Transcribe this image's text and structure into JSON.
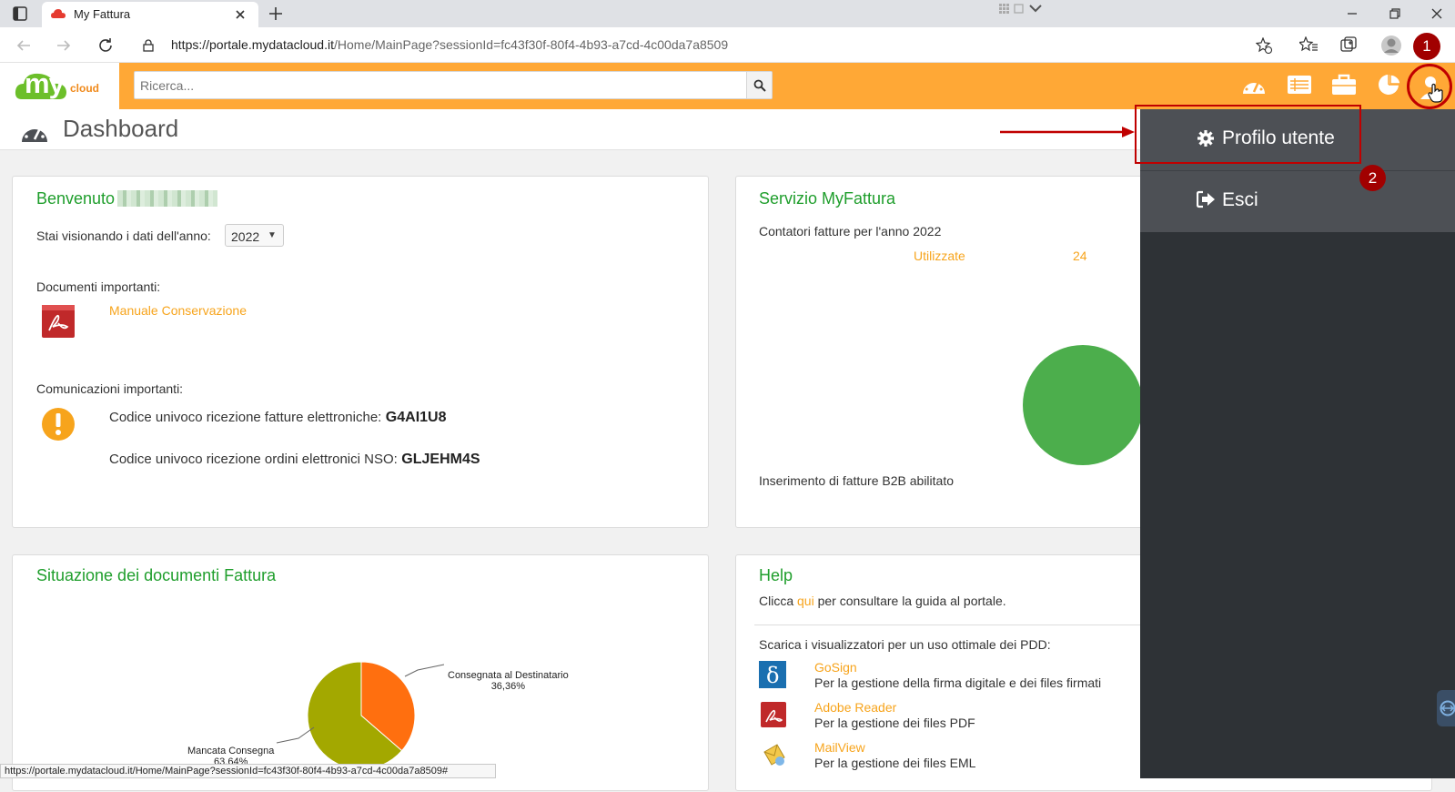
{
  "browser": {
    "tab_title": "My Fattura",
    "url_host": "https://portale.mydatacloud.it",
    "url_path": "/Home/MainPage?sessionId=fc43f30f-80f4-4b93-a7cd-4c00da7a8509",
    "status_url": "https://portale.mydatacloud.it/Home/MainPage?sessionId=fc43f30f-80f4-4b93-a7cd-4c00da7a8509#"
  },
  "header": {
    "logo_text": "my",
    "logo_sub": "cloud",
    "search_placeholder": "Ricerca..."
  },
  "page": {
    "title": "Dashboard"
  },
  "welcome": {
    "title": "Benvenuto",
    "year_label": "Stai visionando i dati dell'anno:",
    "year_value": "2022",
    "docs_label": "Documenti importanti:",
    "doc_link": "Manuale Conservazione",
    "comm_label": "Comunicazioni importanti:",
    "code1_label": "Codice univoco ricezione fatture elettroniche:",
    "code1_value": "G4AI1U8",
    "code2_label": "Codice univoco ricezione ordini elettronici NSO:",
    "code2_value": "GLJEHM4S"
  },
  "service": {
    "title": "Servizio MyFattura",
    "counters_label": "Contatori fatture per l'anno 2022",
    "used_label": "Utilizzate",
    "used_value": "24",
    "b2b_label": "Inserimento di fatture B2B abilitato"
  },
  "situazione": {
    "title": "Situazione dei documenti Fattura",
    "label_a": "Consegnata al Destinatario",
    "pct_a": "36,36%",
    "label_b": "Mancata Consegna",
    "pct_b": "63,64%"
  },
  "help": {
    "title": "Help",
    "click_pre": "Clicca",
    "click_link": "qui",
    "click_post": "per consultare la guida al portale.",
    "viewers_label": "Scarica i visualizzatori per un uso ottimale dei PDD:",
    "items": [
      {
        "name": "GoSign",
        "desc": "Per la gestione della firma digitale e dei files firmati"
      },
      {
        "name": "Adobe Reader",
        "desc": "Per la gestione dei files PDF"
      },
      {
        "name": "MailView",
        "desc": "Per la gestione dei files EML"
      }
    ]
  },
  "user_menu": {
    "profile_label": "Profilo utente",
    "logout_label": "Esci"
  },
  "annotations": {
    "step1": "1",
    "step2": "2"
  },
  "chart_data": {
    "type": "pie",
    "categories": [
      "Consegnata al Destinatario",
      "Mancata Consegna"
    ],
    "values": [
      36.36,
      63.64
    ],
    "colors": [
      "#ff6f0f",
      "#a3a800"
    ]
  },
  "colors": {
    "accent": "#ffa836",
    "title_green": "#1f9e2c",
    "link_orange": "#f7a41c",
    "annotation_red": "#c00000"
  }
}
